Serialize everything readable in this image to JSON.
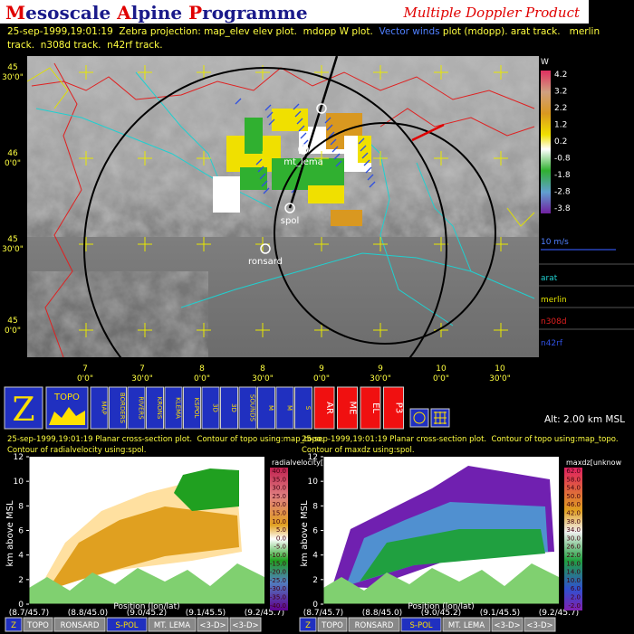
{
  "header": {
    "title_parts": [
      "M",
      "esoscale ",
      "A",
      "lpine ",
      "P",
      "rogramme"
    ],
    "product": "Multiple Doppler Product"
  },
  "info": {
    "line1": [
      "25-sep-1999,19:01:19  Zebra projection: map_elev elev plot.  mdopp W plot.  ",
      "Vector winds",
      " plot (mdopp). arat track.   merlin"
    ],
    "line2": "track.  n308d track.  n42rf track."
  },
  "map": {
    "lat_labels": [
      [
        "45",
        "30'0\""
      ],
      [
        "46",
        "0'0\""
      ],
      [
        "45",
        "30'0\""
      ],
      [
        "45",
        "0'0\""
      ]
    ],
    "lon_labels": [
      [
        "7",
        "0'0\""
      ],
      [
        "7",
        "30'0\""
      ],
      [
        "8",
        "0'0\""
      ],
      [
        "8",
        "30'0\""
      ],
      [
        "9",
        "0'0\""
      ],
      [
        "9",
        "30'0\""
      ],
      [
        "10",
        "0'0\""
      ],
      [
        "10",
        "30'0\""
      ]
    ],
    "stations": [
      "mt_lema",
      "spol",
      "ronsard"
    ]
  },
  "legend": {
    "title": "W",
    "scale": [
      "4.2",
      "3.2",
      "2.2",
      "1.2",
      "0.2",
      "-0.8",
      "-1.8",
      "-2.8",
      "-3.8"
    ],
    "vector_scale": "10 m/s",
    "tracks": [
      "arat",
      "merlin",
      "n308d",
      "n42rf"
    ]
  },
  "toolbar": {
    "buttons": [
      "Z",
      "TOPO",
      "MAP",
      "BORDERS",
      "RIVERS",
      "KRONS",
      "KLEMA",
      "KSPOL",
      "3D",
      "3D",
      "SOUNDS",
      "M",
      "M",
      "S",
      "AR",
      "ME",
      "EL",
      "P3"
    ],
    "altitude": "Alt: 2.00 km MSL"
  },
  "sections": [
    {
      "lines": [
        "25-sep-1999,19:01:19 Planar cross-section plot.  Contour of topo using:map_topo.",
        "Contour of radialvelocity using:spol."
      ],
      "ylabel": "km above MSL",
      "yticks": [
        "0",
        "2",
        "4",
        "6",
        "8",
        "10",
        "12"
      ],
      "xticks": [
        "(8.7/45.7)",
        "(8.8/45.0)",
        "(9.0/45.2)",
        "(9.1/45.5)",
        "(9.2/45.7)"
      ],
      "xlabel": "Position (lon/lat)",
      "colorbar_title": "radialvelocity[]",
      "colorbar": [
        "40.0",
        "35.0",
        "30.0",
        "25.0",
        "20.0",
        "15.0",
        "10.0",
        "5.0",
        "0.0",
        "-5.0",
        "-10.0",
        "-15.0",
        "-20.0",
        "-25.0",
        "-30.0",
        "-35.0",
        "-40.0"
      ],
      "buttons": [
        "Z",
        "TOPO",
        "RONSARD",
        "S-POL",
        "MT. LEMA",
        "<3-D>",
        "<3-D>"
      ]
    },
    {
      "lines": [
        "25-sep-1999,19:01:19 Planar cross-section plot.  Contour of topo using:map_topo.",
        "Contour of maxdz using:spol."
      ],
      "ylabel": "km above MSL",
      "yticks": [
        "0",
        "2",
        "4",
        "6",
        "8",
        "10",
        "12"
      ],
      "xticks": [
        "(8.7/45.7)",
        "(8.8/45.0)",
        "(9.0/45.2)",
        "(9.1/45.5)",
        "(9.2/45.7)"
      ],
      "xlabel": "Position (lon/lat)",
      "colorbar_title": "maxdz[unknow",
      "colorbar": [
        "62.0",
        "58.0",
        "54.0",
        "50.0",
        "46.0",
        "42.0",
        "38.0",
        "34.0",
        "30.0",
        "26.0",
        "22.0",
        "18.0",
        "14.0",
        "10.0",
        "6.0",
        "2.0",
        "-2.0"
      ],
      "buttons": [
        "Z",
        "TOPO",
        "RONSARD",
        "S-POL",
        "MT. LEMA",
        "<3-D>",
        "<3-D>"
      ]
    }
  ]
}
